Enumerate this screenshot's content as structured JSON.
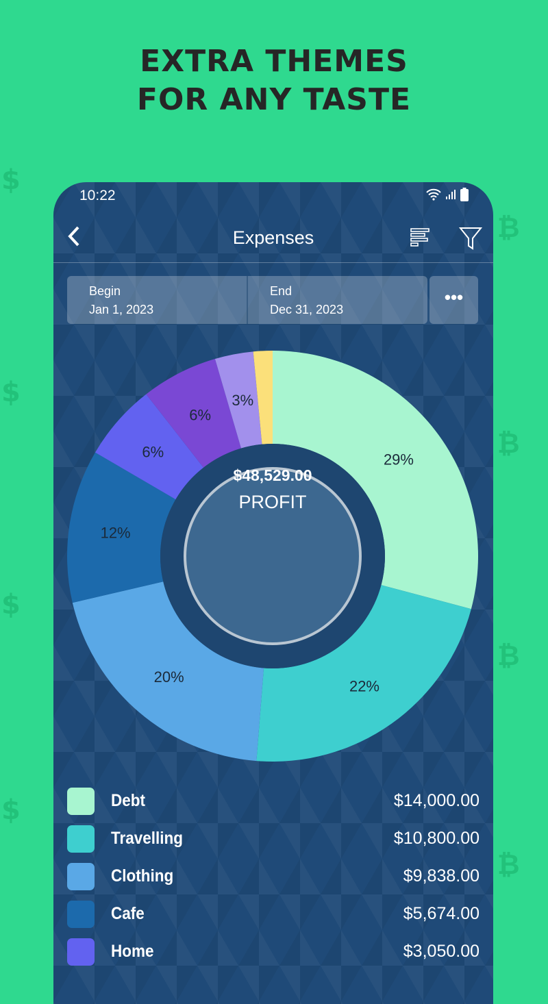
{
  "promo": {
    "line1": "EXTRA THEMES",
    "line2": "FOR ANY TASTE"
  },
  "status": {
    "time": "10:22",
    "icons": [
      "wifi-icon",
      "signal-icon",
      "battery-icon"
    ]
  },
  "topbar": {
    "title": "Expenses",
    "back_icon": "chevron-left-icon",
    "actions": [
      "bar-list-icon",
      "filter-icon"
    ]
  },
  "dates": {
    "begin_label": "Begin",
    "begin_value": "Jan 1, 2023",
    "end_label": "End",
    "end_value": "Dec 31, 2023",
    "more": "•••"
  },
  "chart_data": {
    "type": "pie",
    "style": "donut",
    "center_amount": "$48,529.00",
    "center_label": "PROFIT",
    "slices": [
      {
        "label": "29%",
        "value": 29,
        "color": "#a8f5d0"
      },
      {
        "label": "22%",
        "value": 22,
        "color": "#3ecfcf"
      },
      {
        "label": "20%",
        "value": 20,
        "color": "#5aa8e6"
      },
      {
        "label": "12%",
        "value": 12,
        "color": "#1c6aac"
      },
      {
        "label": "6%",
        "value": 6,
        "color": "#6262f0"
      },
      {
        "label": "6%",
        "value": 6,
        "color": "#7a48d4"
      },
      {
        "label": "3%",
        "value": 3,
        "color": "#a290ec"
      },
      {
        "label": "",
        "value": 1.5,
        "color": "#fbe07a"
      }
    ]
  },
  "legend": [
    {
      "name": "Debt",
      "amount": "$14,000.00",
      "color": "#a8f5d0"
    },
    {
      "name": "Travelling",
      "amount": "$10,800.00",
      "color": "#3ecfcf"
    },
    {
      "name": "Clothing",
      "amount": "$9,838.00",
      "color": "#5aa8e6"
    },
    {
      "name": "Cafe",
      "amount": "$5,674.00",
      "color": "#1c6aac"
    },
    {
      "name": "Home",
      "amount": "$3,050.00",
      "color": "#6262f0"
    }
  ]
}
